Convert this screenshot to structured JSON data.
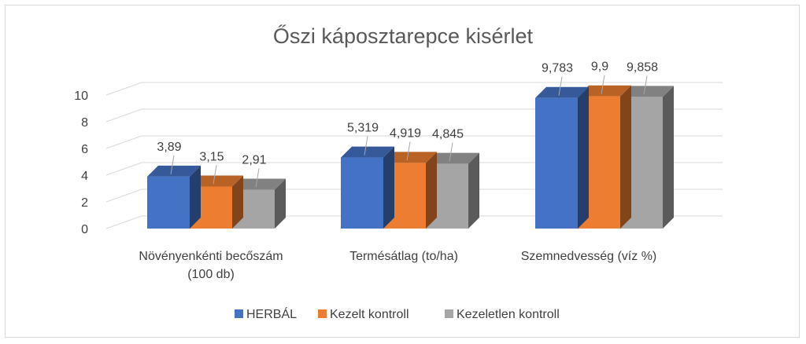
{
  "chart_data": {
    "type": "bar",
    "title": "Őszi káposztarepce kisérlet",
    "categories": [
      [
        "Növényenkénti becőszám",
        "(100 db)"
      ],
      [
        "Termésátlag (to/ha)"
      ],
      [
        "Szemnedvesség (víz %)"
      ]
    ],
    "series": [
      {
        "name": "HERBÁL",
        "color": "#4472C4",
        "values": [
          3.89,
          5.319,
          9.783
        ],
        "labels": [
          "3,89",
          "5,319",
          "9,783"
        ]
      },
      {
        "name": "Kezelt kontroll",
        "color": "#ED7D31",
        "values": [
          3.15,
          4.919,
          9.9
        ],
        "labels": [
          "3,15",
          "4,919",
          "9,9"
        ]
      },
      {
        "name": "Kezeletlen kontroll",
        "color": "#A5A5A5",
        "values": [
          2.91,
          4.845,
          9.858
        ],
        "labels": [
          "2,91",
          "4,845",
          "9,858"
        ]
      }
    ],
    "y_ticks": [
      "0",
      "2",
      "4",
      "6",
      "8",
      "10"
    ],
    "ylim": [
      0,
      10
    ],
    "grid": true,
    "legend": "bottom"
  }
}
